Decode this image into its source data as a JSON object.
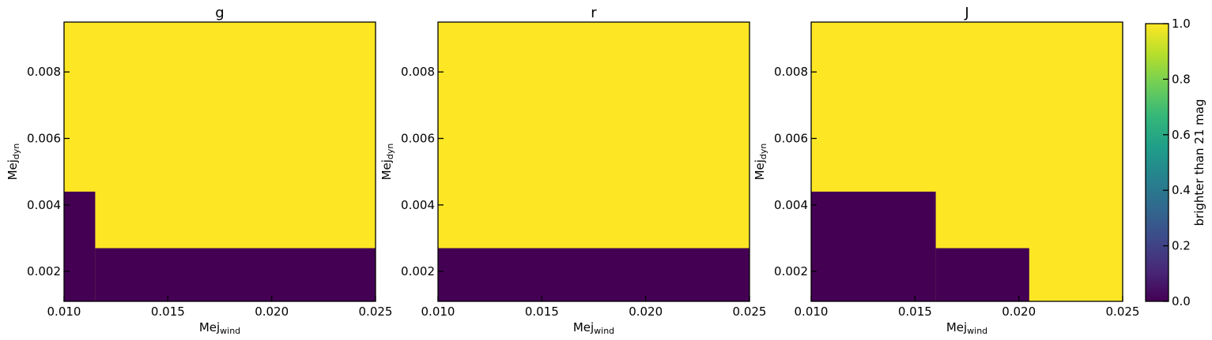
{
  "chart_data": [
    {
      "type": "heatmap",
      "title": "g",
      "xlabel": "Mej",
      "xlabel_sub": "wind",
      "ylabel": "Mej",
      "ylabel_sub": "dyn",
      "xlim": [
        0.01,
        0.025
      ],
      "ylim": [
        0.0011,
        0.0095
      ],
      "xticks": [
        "0.010",
        "0.015",
        "0.020",
        "0.025"
      ],
      "yticks": [
        "0.002",
        "0.004",
        "0.006",
        "0.008"
      ],
      "regions": [
        {
          "x": [
            0.01,
            0.0115
          ],
          "y": [
            0.0011,
            0.0044
          ],
          "value": 0
        },
        {
          "x": [
            0.0115,
            0.025
          ],
          "y": [
            0.0011,
            0.0027
          ],
          "value": 0
        }
      ],
      "background_value": 1
    },
    {
      "type": "heatmap",
      "title": "r",
      "xlabel": "Mej",
      "xlabel_sub": "wind",
      "ylabel": "Mej",
      "ylabel_sub": "dyn",
      "xlim": [
        0.01,
        0.025
      ],
      "ylim": [
        0.0011,
        0.0095
      ],
      "xticks": [
        "0.010",
        "0.015",
        "0.020",
        "0.025"
      ],
      "yticks": [
        "0.002",
        "0.004",
        "0.006",
        "0.008"
      ],
      "regions": [
        {
          "x": [
            0.01,
            0.025
          ],
          "y": [
            0.0011,
            0.0027
          ],
          "value": 0
        }
      ],
      "background_value": 1
    },
    {
      "type": "heatmap",
      "title": "J",
      "xlabel": "Mej",
      "xlabel_sub": "wind",
      "ylabel": "Mej",
      "ylabel_sub": "dyn",
      "xlim": [
        0.01,
        0.025
      ],
      "ylim": [
        0.0011,
        0.0095
      ],
      "xticks": [
        "0.010",
        "0.015",
        "0.020",
        "0.025"
      ],
      "yticks": [
        "0.002",
        "0.004",
        "0.006",
        "0.008"
      ],
      "regions": [
        {
          "x": [
            0.01,
            0.016
          ],
          "y": [
            0.0011,
            0.0044
          ],
          "value": 0
        },
        {
          "x": [
            0.016,
            0.0205
          ],
          "y": [
            0.0011,
            0.0027
          ],
          "value": 0
        }
      ],
      "background_value": 1
    }
  ],
  "colorbar": {
    "label": "brighter than 21 mag",
    "ticks": [
      "0.0",
      "0.2",
      "0.4",
      "0.6",
      "0.8",
      "1.0"
    ],
    "range": [
      0,
      1
    ],
    "colormap": "viridis"
  },
  "colors": {
    "high": "#fde725",
    "low": "#440154",
    "viridis_stops": [
      "#440154",
      "#482878",
      "#3e4989",
      "#31688e",
      "#26828e",
      "#1f9e89",
      "#35b779",
      "#6ece58",
      "#b5de2b",
      "#fde725"
    ]
  }
}
